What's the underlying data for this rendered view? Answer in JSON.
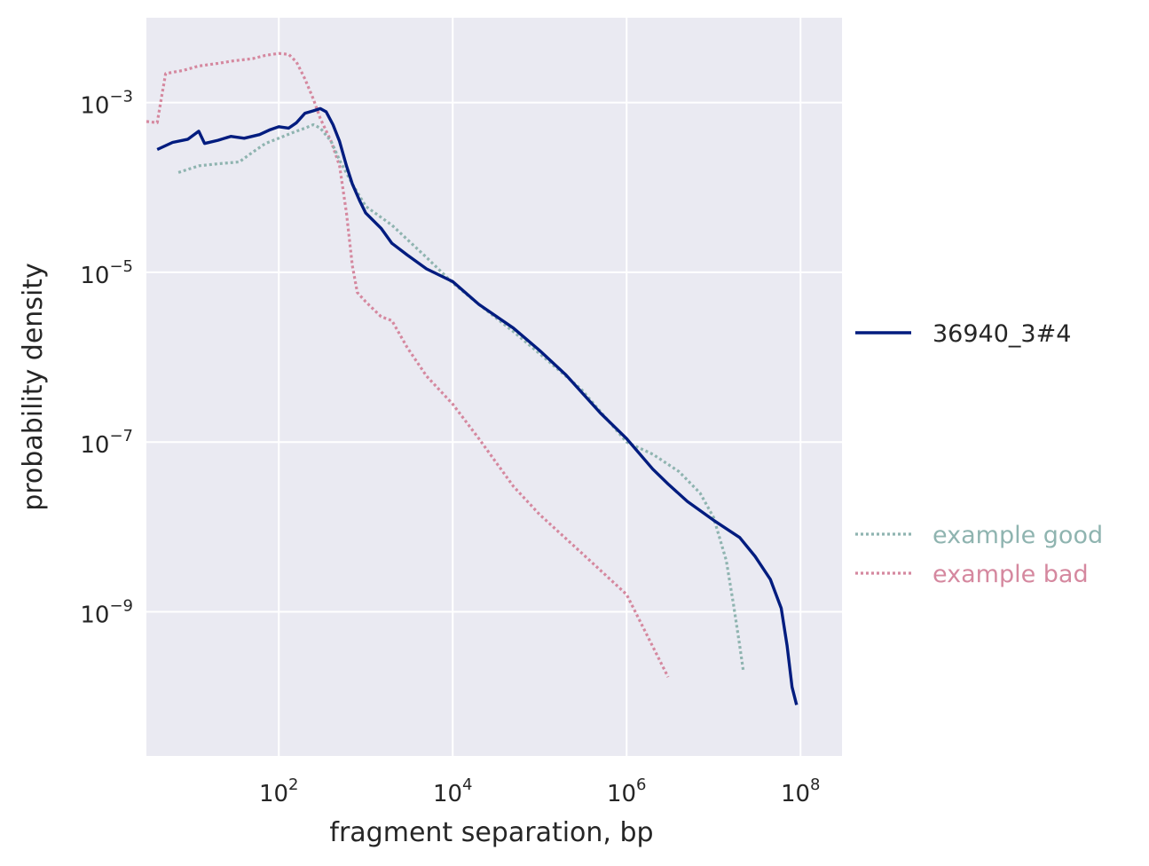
{
  "chart_data": {
    "type": "line",
    "title": "",
    "xlabel": "fragment separation, bp",
    "ylabel": "probability density",
    "xscale": "log",
    "yscale": "log",
    "xlim": [
      3,
      300000000
    ],
    "ylim": [
      2e-11,
      0.01
    ],
    "x_ticks": [
      {
        "value": 100,
        "base": "10",
        "exp": "2"
      },
      {
        "value": 10000,
        "base": "10",
        "exp": "4"
      },
      {
        "value": 1000000,
        "base": "10",
        "exp": "6"
      },
      {
        "value": 100000000,
        "base": "10",
        "exp": "8"
      }
    ],
    "y_ticks": [
      {
        "value": 0.001,
        "base": "10",
        "exp": "−3"
      },
      {
        "value": 1e-05,
        "base": "10",
        "exp": "−5"
      },
      {
        "value": 1e-07,
        "base": "10",
        "exp": "−7"
      },
      {
        "value": 1e-09,
        "base": "10",
        "exp": "−9"
      }
    ],
    "grid": true,
    "legend_position": "right",
    "background": "#eaeaf2",
    "series": [
      {
        "name": "36940_3#4",
        "color": "#001c7f",
        "style": "solid",
        "points": [
          [
            4,
            0.00028
          ],
          [
            6,
            0.00034
          ],
          [
            9,
            0.00037
          ],
          [
            12,
            0.00046
          ],
          [
            14,
            0.00033
          ],
          [
            20,
            0.00036
          ],
          [
            28,
            0.0004
          ],
          [
            40,
            0.00038
          ],
          [
            60,
            0.00042
          ],
          [
            80,
            0.00048
          ],
          [
            100,
            0.00052
          ],
          [
            130,
            0.0005
          ],
          [
            160,
            0.00058
          ],
          [
            200,
            0.00075
          ],
          [
            250,
            0.0008
          ],
          [
            300,
            0.00085
          ],
          [
            350,
            0.00078
          ],
          [
            420,
            0.00055
          ],
          [
            500,
            0.00035
          ],
          [
            600,
            0.00018
          ],
          [
            700,
            0.00011
          ],
          [
            850,
            7e-05
          ],
          [
            1000,
            5e-05
          ],
          [
            1500,
            3.3e-05
          ],
          [
            2000,
            2.2e-05
          ],
          [
            3000,
            1.6e-05
          ],
          [
            5000,
            1.1e-05
          ],
          [
            10000,
            7.8e-06
          ],
          [
            20000,
            4.2e-06
          ],
          [
            50000,
            2.2e-06
          ],
          [
            100000,
            1.2e-06
          ],
          [
            200000,
            6.2e-07
          ],
          [
            500000,
            2.2e-07
          ],
          [
            1000000,
            1.1e-07
          ],
          [
            2000000,
            4.8e-08
          ],
          [
            3000000,
            3.2e-08
          ],
          [
            5000000,
            2e-08
          ],
          [
            10000000,
            1.2e-08
          ],
          [
            20000000,
            7.5e-09
          ],
          [
            30000000,
            4.5e-09
          ],
          [
            45000000,
            2.4e-09
          ],
          [
            60000000,
            1.1e-09
          ],
          [
            70000000,
            4e-10
          ],
          [
            80000000,
            1.3e-10
          ],
          [
            90000000,
            8e-11
          ]
        ]
      },
      {
        "name": "example good",
        "color": "#8fb4b0",
        "style": "dotted",
        "points": [
          [
            7,
            0.00015
          ],
          [
            12,
            0.00018
          ],
          [
            20,
            0.00019
          ],
          [
            35,
            0.0002
          ],
          [
            50,
            0.00026
          ],
          [
            70,
            0.00033
          ],
          [
            100,
            0.00038
          ],
          [
            150,
            0.00045
          ],
          [
            200,
            0.0005
          ],
          [
            250,
            0.00055
          ],
          [
            300,
            0.0005
          ],
          [
            400,
            0.00035
          ],
          [
            500,
            0.00021
          ],
          [
            700,
            0.00011
          ],
          [
            1000,
            6e-05
          ],
          [
            2000,
            3.6e-05
          ],
          [
            5000,
            1.5e-05
          ],
          [
            10000,
            7.5e-06
          ],
          [
            20000,
            4.2e-06
          ],
          [
            50000,
            2e-06
          ],
          [
            100000,
            1.1e-06
          ],
          [
            300000,
            4.2e-07
          ],
          [
            1000000,
            1e-07
          ],
          [
            2000000,
            7.2e-08
          ],
          [
            4000000,
            4.5e-08
          ],
          [
            7000000,
            2.5e-08
          ],
          [
            10000000,
            1.3e-08
          ],
          [
            14000000,
            4e-09
          ],
          [
            17000000,
            1.2e-09
          ],
          [
            20000000,
            4e-10
          ],
          [
            22000000,
            2e-10
          ]
        ]
      },
      {
        "name": "example bad",
        "color": "#d5889f",
        "style": "dotted",
        "points": [
          [
            3,
            0.0006
          ],
          [
            4,
            0.00058
          ],
          [
            4.5,
            0.0012
          ],
          [
            5,
            0.0022
          ],
          [
            8,
            0.0024
          ],
          [
            12,
            0.0027
          ],
          [
            20,
            0.0029
          ],
          [
            30,
            0.0031
          ],
          [
            50,
            0.0033
          ],
          [
            70,
            0.0036
          ],
          [
            100,
            0.0038
          ],
          [
            130,
            0.0037
          ],
          [
            160,
            0.003
          ],
          [
            200,
            0.0019
          ],
          [
            250,
            0.0011
          ],
          [
            300,
            0.00065
          ],
          [
            400,
            0.00035
          ],
          [
            500,
            0.00018
          ],
          [
            600,
            5e-05
          ],
          [
            700,
            1.2e-05
          ],
          [
            800,
            5.8e-06
          ],
          [
            1000,
            4.5e-06
          ],
          [
            1500,
            3e-06
          ],
          [
            2000,
            2.7e-06
          ],
          [
            3000,
            1.3e-06
          ],
          [
            5000,
            6e-07
          ],
          [
            10000,
            2.8e-07
          ],
          [
            20000,
            1.1e-07
          ],
          [
            50000,
            3e-08
          ],
          [
            100000,
            1.4e-08
          ],
          [
            300000,
            5e-09
          ],
          [
            1000000,
            1.6e-09
          ],
          [
            3000000,
            1.7e-10
          ]
        ]
      }
    ]
  }
}
